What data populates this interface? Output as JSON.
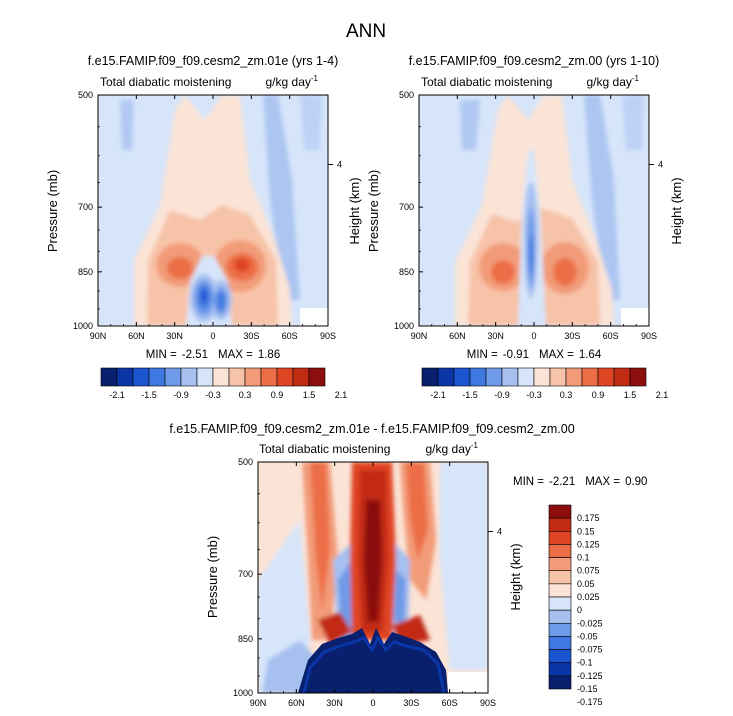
{
  "page_title": "ANN",
  "palette": {
    "blues": [
      "#08206e",
      "#0b36a8",
      "#1c55d0",
      "#3f78e0",
      "#6f9ae8",
      "#a6c0f0",
      "#d6e5fa"
    ],
    "reds": [
      "#fbe3d6",
      "#f7c3a8",
      "#f29b78",
      "#ec6e46",
      "#df4522",
      "#c22b14",
      "#8c0f0d"
    ]
  },
  "chart_data": [
    {
      "type": "heatmap",
      "id": "panel1",
      "title": "f.e15.FAMIP.f09_f09.cesm2_zm.01e (yrs 1-4)",
      "left_label": "Total diabatic moistening",
      "right_label": "g/kg day",
      "units_superscript": "-1",
      "xlabel": "",
      "ylabel": "Pressure (mb)",
      "y2label": "Height (km)",
      "x_ticks": [
        "90N",
        "60N",
        "30N",
        "0",
        "30S",
        "60S",
        "90S"
      ],
      "y_ticks": [
        "500",
        "700",
        "850",
        "1000"
      ],
      "y2_ticks": [
        "4"
      ],
      "stats": {
        "min_label": "MIN =",
        "min": "-2.51",
        "max_label": "MAX =",
        "max": "1.86"
      },
      "colorbar": {
        "orientation": "horizontal",
        "labels": [
          "-2.1",
          "-1.5",
          "-0.9",
          "-0.3",
          "0.3",
          "0.9",
          "1.5",
          "2.1"
        ]
      }
    },
    {
      "type": "heatmap",
      "id": "panel2",
      "title": "f.e15.FAMIP.f09_f09.cesm2_zm.00 (yrs 1-10)",
      "left_label": "Total diabatic moistening",
      "right_label": "g/kg day",
      "units_superscript": "-1",
      "xlabel": "",
      "ylabel": "Pressure (mb)",
      "y2label": "Height (km)",
      "x_ticks": [
        "90N",
        "60N",
        "30N",
        "0",
        "30S",
        "60S",
        "90S"
      ],
      "y_ticks": [
        "500",
        "700",
        "850",
        "1000"
      ],
      "y2_ticks": [
        "4"
      ],
      "stats": {
        "min_label": "MIN =",
        "min": "-0.91",
        "max_label": "MAX =",
        "max": "1.64"
      },
      "colorbar": {
        "orientation": "horizontal",
        "labels": [
          "-2.1",
          "-1.5",
          "-0.9",
          "-0.3",
          "0.3",
          "0.9",
          "1.5",
          "2.1"
        ]
      }
    },
    {
      "type": "heatmap",
      "id": "panel3",
      "title": "f.e15.FAMIP.f09_f09.cesm2_zm.01e - f.e15.FAMIP.f09_f09.cesm2_zm.00",
      "left_label": "Total diabatic moistening",
      "right_label": "g/kg day",
      "units_superscript": "-1",
      "xlabel": "",
      "ylabel": "Pressure (mb)",
      "y2label": "Height (km)",
      "x_ticks": [
        "90N",
        "60N",
        "30N",
        "0",
        "30S",
        "60S",
        "90S"
      ],
      "y_ticks": [
        "500",
        "700",
        "850",
        "1000"
      ],
      "y2_ticks": [
        "4"
      ],
      "stats": {
        "min_label": "MIN =",
        "min": "-2.21",
        "max_label": "MAX =",
        "max": "0.90"
      },
      "colorbar": {
        "orientation": "vertical",
        "labels": [
          "0.175",
          "0.15",
          "0.125",
          "0.1",
          "0.075",
          "0.05",
          "0.025",
          "0",
          "-0.025",
          "-0.05",
          "-0.075",
          "-0.1",
          "-0.125",
          "-0.15",
          "-0.175"
        ]
      }
    }
  ]
}
